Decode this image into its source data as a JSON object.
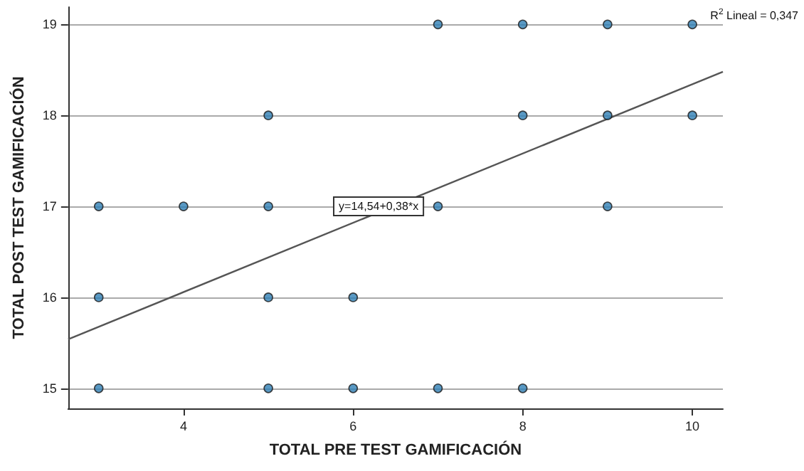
{
  "chart_data": {
    "type": "scatter",
    "xlabel": "TOTAL PRE TEST GAMIFICACIÓN",
    "ylabel": "TOTAL POST TEST GAMIFICACIÓN",
    "xlim": [
      2.64,
      10.36
    ],
    "xticks": [
      4,
      6,
      8,
      10
    ],
    "ylim": [
      14.78,
      19.19
    ],
    "yticks": [
      15,
      16,
      17,
      18,
      19
    ],
    "grid": "y",
    "marker": "circle",
    "series": [
      {
        "color": "#2f7fb5",
        "x": [
          7,
          8,
          9,
          10,
          5,
          8,
          9,
          10,
          3,
          4,
          5,
          7,
          9,
          3,
          5,
          6,
          3,
          5,
          6,
          7,
          8
        ],
        "values": [
          19,
          19,
          19,
          19,
          18,
          18,
          18,
          18,
          17,
          17,
          17,
          17,
          17,
          16,
          16,
          16,
          15,
          15,
          15,
          15,
          15
        ]
      },
      {
        "type": "line",
        "color": "#555555",
        "line_style": "solid",
        "marker": "none",
        "x": [
          2.64,
          10.36
        ],
        "values": [
          15.54,
          18.48
        ]
      }
    ],
    "annotations": [
      {
        "text": "y=14,54+0,38*x",
        "x": 6.3,
        "y": 17
      },
      "R$^{2}$ Lineal = 0,347"
    ]
  }
}
